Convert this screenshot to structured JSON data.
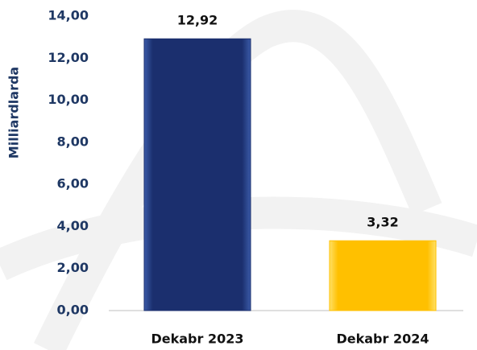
{
  "chart_data": {
    "type": "bar",
    "y_label": "Milliardlarda",
    "categories": [
      "Dekabr 2023",
      "Dekabr 2024"
    ],
    "values": [
      12.92,
      3.32
    ],
    "value_labels": [
      "12,92",
      "3,32"
    ],
    "colors": [
      "#1b2f6e",
      "#ffc000"
    ],
    "ylim": [
      0,
      14
    ],
    "yticks": [
      {
        "value": 0,
        "label": "0,00"
      },
      {
        "value": 2,
        "label": "2,00"
      },
      {
        "value": 4,
        "label": "4,00"
      },
      {
        "value": 6,
        "label": "6,00"
      },
      {
        "value": 8,
        "label": "8,00"
      },
      {
        "value": 10,
        "label": "10,00"
      },
      {
        "value": 12,
        "label": "12,00"
      },
      {
        "value": 14,
        "label": "14,00"
      }
    ],
    "grid": false
  }
}
